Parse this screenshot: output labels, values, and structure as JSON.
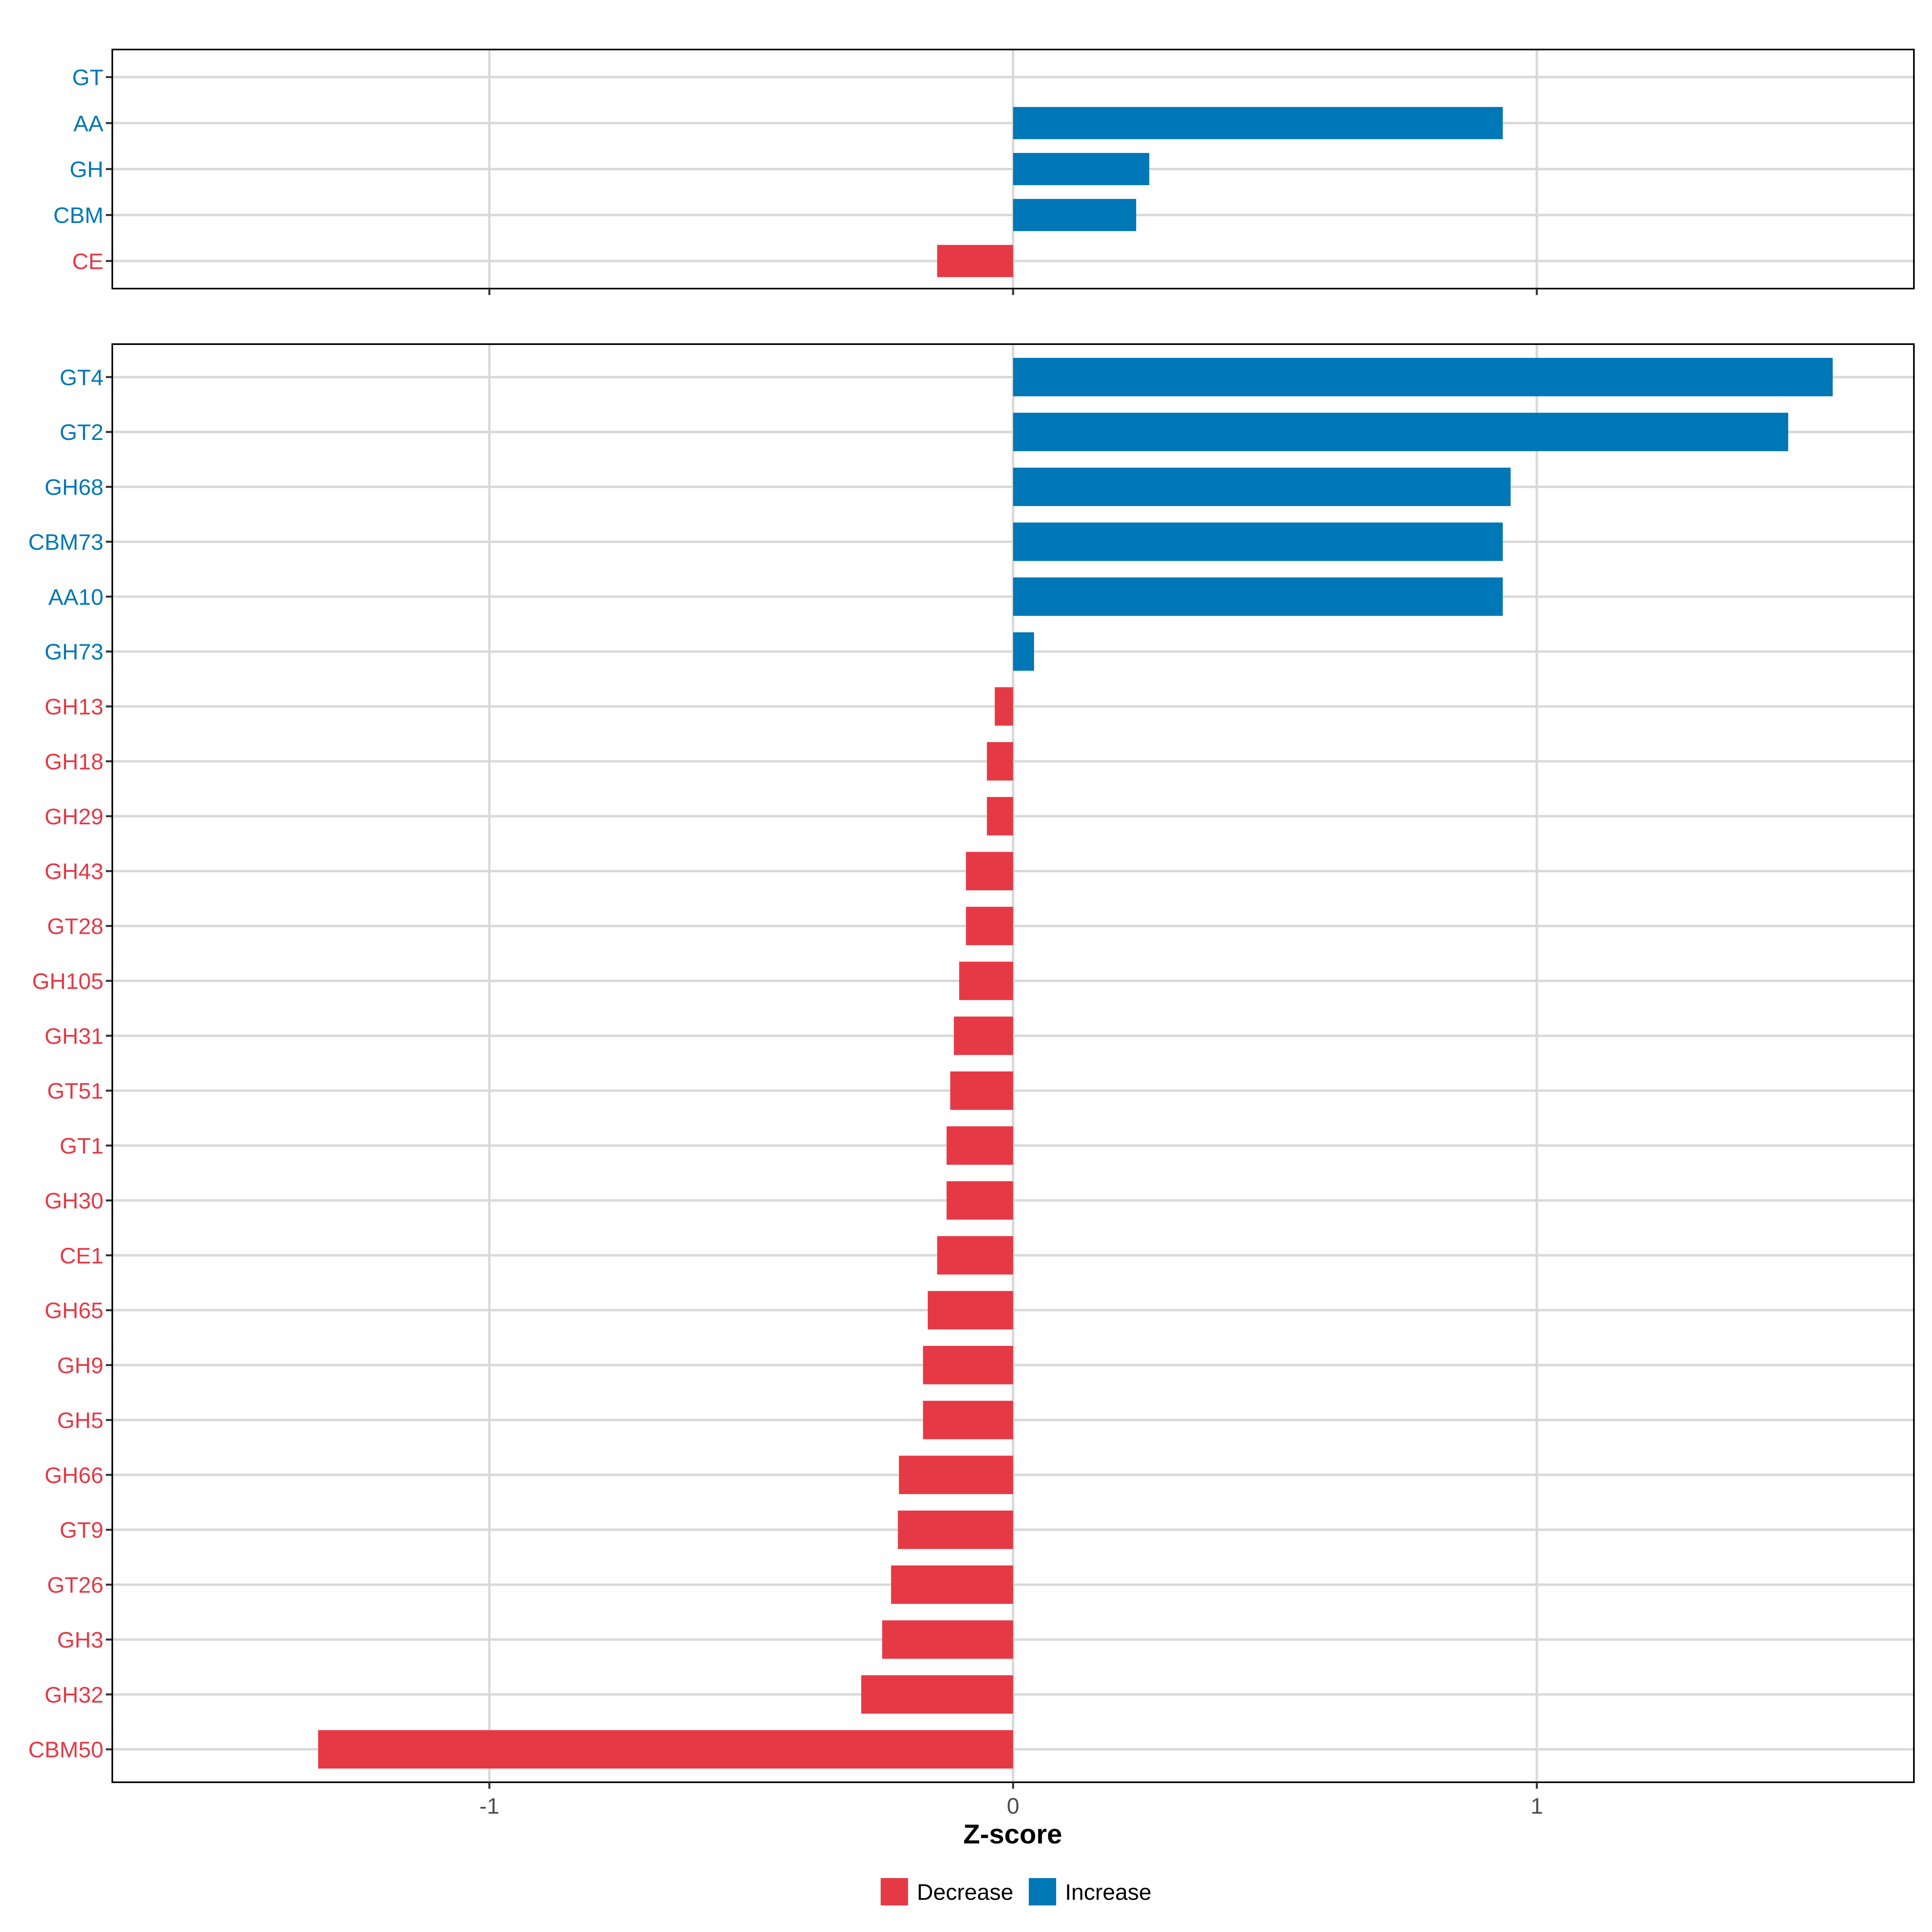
{
  "chart_data": {
    "type": "bar",
    "orientation": "horizontal",
    "xlabel": "Z-score",
    "x_ticks": [
      -1,
      0,
      1
    ],
    "xlim": [
      -1.72,
      1.72
    ],
    "grid": true,
    "legend": {
      "position": "bottom",
      "entries": [
        {
          "name": "Decrease",
          "color": "#E63946"
        },
        {
          "name": "Increase",
          "color": "#0077B6"
        }
      ]
    },
    "colors": {
      "Decrease": "#E63946",
      "Increase": "#0077B6"
    },
    "panels": [
      {
        "categories": [
          "GT",
          "AA",
          "GH",
          "CBM",
          "CE"
        ],
        "values": [
          0,
          0.935,
          0.26,
          0.235,
          -0.145
        ],
        "groups": [
          "Increase",
          "Increase",
          "Increase",
          "Increase",
          "Decrease"
        ]
      },
      {
        "categories": [
          "GT4",
          "GT2",
          "GH68",
          "CBM73",
          "AA10",
          "GH73",
          "GH13",
          "GH18",
          "GH29",
          "GH43",
          "GT28",
          "GH105",
          "GH31",
          "GT51",
          "GT1",
          "GH30",
          "CE1",
          "GH65",
          "GH9",
          "GH5",
          "GH66",
          "GT9",
          "GT26",
          "GH3",
          "GH32",
          "CBM50"
        ],
        "values": [
          1.565,
          1.48,
          0.95,
          0.935,
          0.935,
          0.04,
          -0.035,
          -0.05,
          -0.05,
          -0.09,
          -0.09,
          -0.103,
          -0.113,
          -0.12,
          -0.127,
          -0.127,
          -0.145,
          -0.163,
          -0.172,
          -0.172,
          -0.218,
          -0.22,
          -0.233,
          -0.25,
          -0.29,
          -1.327
        ],
        "groups": [
          "Increase",
          "Increase",
          "Increase",
          "Increase",
          "Increase",
          "Increase",
          "Decrease",
          "Decrease",
          "Decrease",
          "Decrease",
          "Decrease",
          "Decrease",
          "Decrease",
          "Decrease",
          "Decrease",
          "Decrease",
          "Decrease",
          "Decrease",
          "Decrease",
          "Decrease",
          "Decrease",
          "Decrease",
          "Decrease",
          "Decrease",
          "Decrease",
          "Decrease"
        ]
      }
    ]
  }
}
